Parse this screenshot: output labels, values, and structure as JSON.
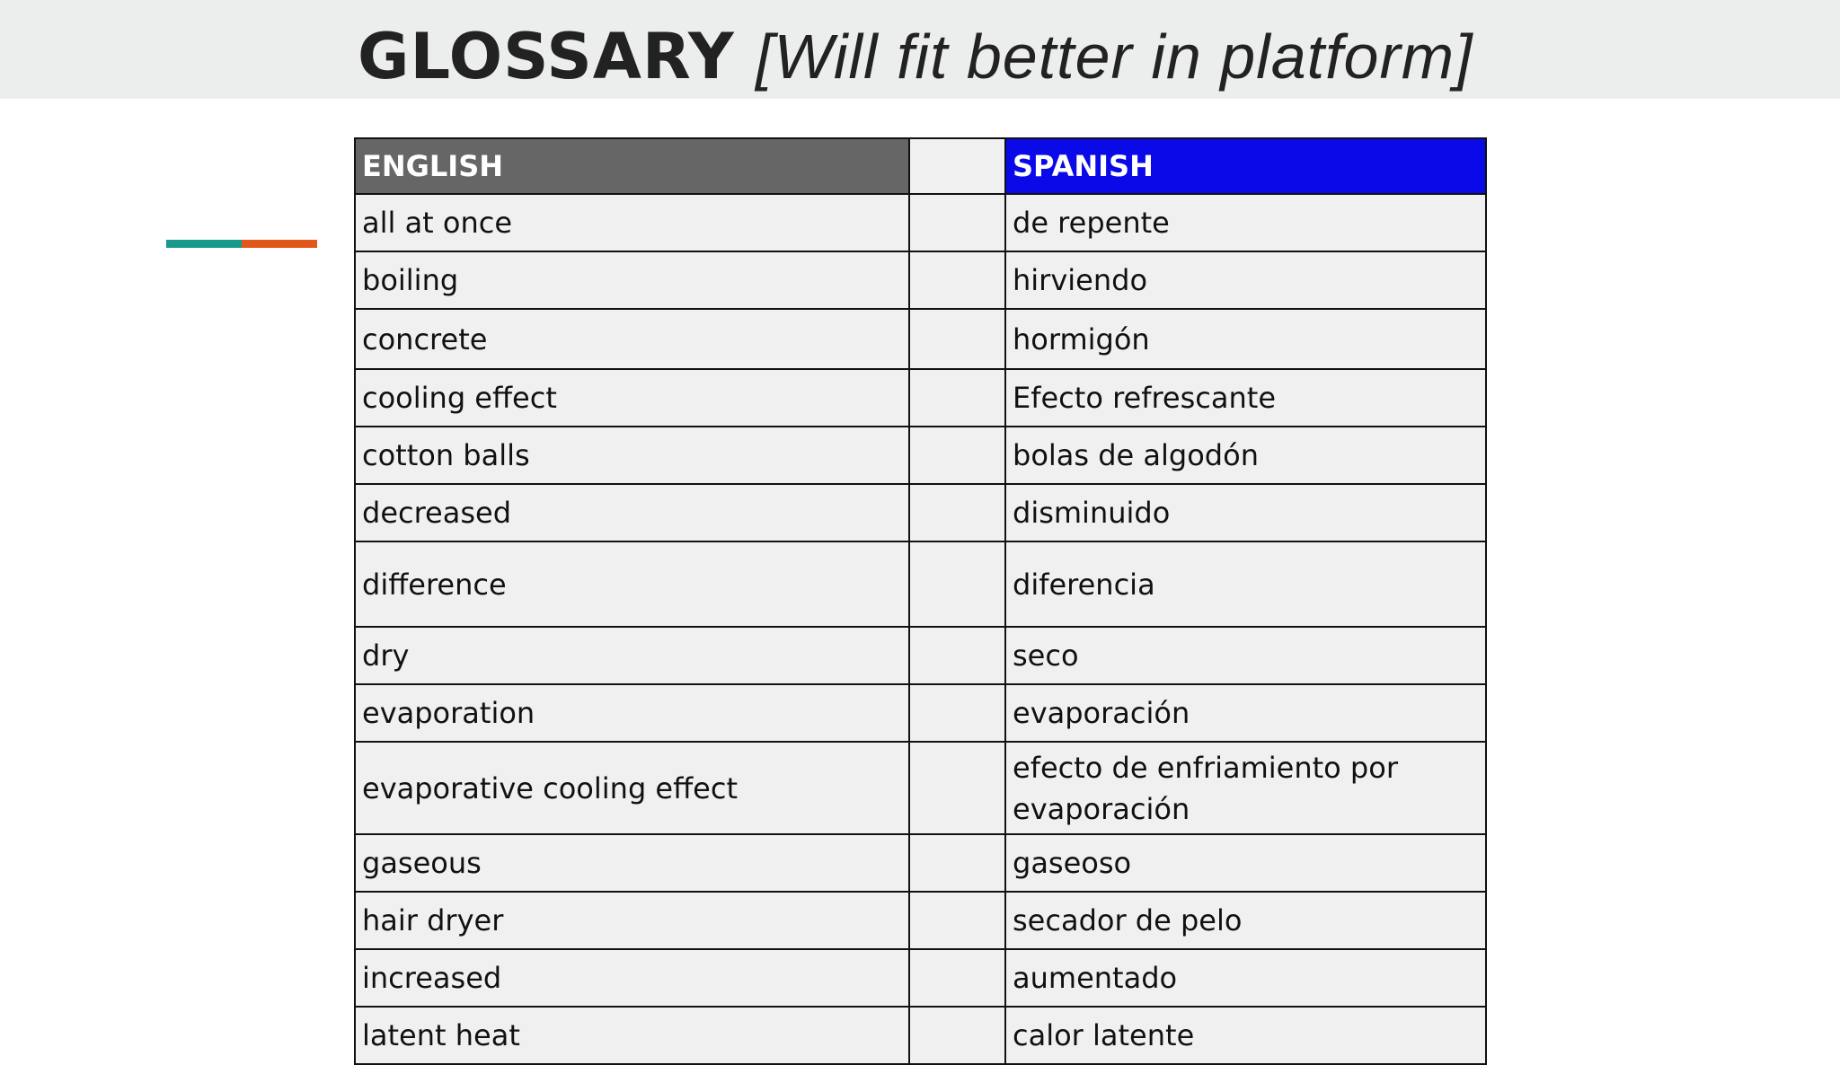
{
  "header": {
    "title": "GLOSSARY",
    "subtitle": "[Will fit better in platform]"
  },
  "table": {
    "headers": {
      "english": "ENGLISH",
      "spanish": "SPANISH"
    },
    "rows": [
      [
        "all at once",
        "de repente"
      ],
      [
        "boiling",
        "hirviendo"
      ],
      [
        "concrete",
        "hormigón"
      ],
      [
        "cooling effect",
        "Efecto refrescante"
      ],
      [
        "cotton balls",
        "bolas de algodón"
      ],
      [
        "decreased",
        "disminuido"
      ],
      [
        "difference",
        "diferencia"
      ],
      [
        "dry",
        "seco"
      ],
      [
        "evaporation",
        "evaporación"
      ],
      [
        "evaporative cooling effect",
        "efecto de enfriamiento por evaporación"
      ],
      [
        "gaseous",
        "gaseoso"
      ],
      [
        "hair dryer",
        "secador de pelo"
      ],
      [
        "increased",
        "aumentado"
      ],
      [
        "latent heat",
        "calor latente"
      ]
    ]
  }
}
